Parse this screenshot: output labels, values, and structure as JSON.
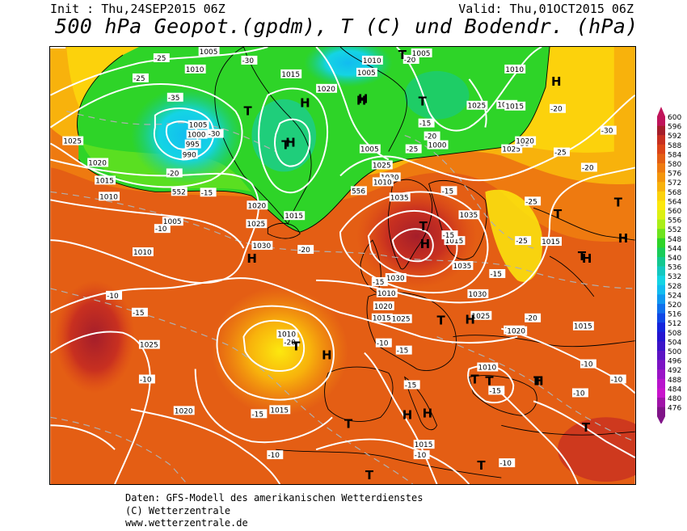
{
  "header": {
    "init": "Init : Thu,24SEP2015 06Z",
    "valid": "Valid: Thu,01OCT2015 06Z",
    "title": "500 hPa Geopot.(gpdm), T (C) und Bodendr. (hPa)"
  },
  "footer": {
    "line1": "Daten: GFS-Modell des amerikanischen Wetterdienstes",
    "line2": "(C) Wetterzentrale",
    "line3": "www.wetterzentrale.de"
  },
  "legend": {
    "labels": [
      "600",
      "596",
      "592",
      "588",
      "584",
      "580",
      "576",
      "572",
      "568",
      "564",
      "560",
      "556",
      "552",
      "548",
      "544",
      "540",
      "536",
      "532",
      "528",
      "524",
      "520",
      "516",
      "512",
      "508",
      "504",
      "500",
      "496",
      "492",
      "488",
      "484",
      "480",
      "476"
    ],
    "colors": [
      "#c0145a",
      "#a51e2a",
      "#c83020",
      "#dc4418",
      "#e45e14",
      "#ee7a10",
      "#f4960c",
      "#f8b20c",
      "#fcd20c",
      "#fce80e",
      "#dcf014",
      "#aaee18",
      "#6ee41e",
      "#2ed428",
      "#1acc5a",
      "#14c890",
      "#14c8c0",
      "#14d4e4",
      "#12bcf0",
      "#1098f0",
      "#1070ec",
      "#1048e6",
      "#1424dc",
      "#2414d0",
      "#3c14c8",
      "#5c14c4",
      "#7c14c4",
      "#9a14c6",
      "#b814cc",
      "#c814cc",
      "#a014a8",
      "#801488"
    ]
  },
  "pressure_labels": [
    "1005",
    "1010",
    "1015",
    "1020",
    "1025",
    "1030",
    "1035",
    "1000",
    "995",
    "990"
  ],
  "temp_labels": [
    "-10",
    "-15",
    "-20",
    "-25",
    "-30",
    "-35"
  ],
  "map_labels": [
    {
      "t": "1005"
    },
    {
      "t": "-25"
    },
    {
      "t": "1010"
    },
    {
      "t": "-30"
    },
    {
      "t": "1015"
    },
    {
      "t": "-25"
    },
    {
      "t": "1020"
    },
    {
      "t": "-35"
    },
    {
      "t": "1005"
    },
    {
      "t": "1000"
    },
    {
      "t": "995"
    },
    {
      "t": "990"
    },
    {
      "t": "-20"
    },
    {
      "t": "-30"
    },
    {
      "t": "1025"
    },
    {
      "t": "1020"
    },
    {
      "t": "1015"
    },
    {
      "t": "1010"
    },
    {
      "t": "552"
    },
    {
      "t": "-15"
    },
    {
      "t": "1005"
    },
    {
      "t": "-10"
    },
    {
      "t": "1010"
    },
    {
      "t": "1030"
    },
    {
      "t": "1025"
    },
    {
      "t": "1020"
    },
    {
      "t": "1015"
    },
    {
      "t": "-20"
    },
    {
      "t": "1025"
    },
    {
      "t": "1030"
    },
    {
      "t": "1035"
    },
    {
      "t": "1005"
    },
    {
      "t": "1010"
    },
    {
      "t": "-20"
    },
    {
      "t": "1005"
    },
    {
      "t": "1010"
    },
    {
      "t": "1020"
    },
    {
      "t": "1025"
    },
    {
      "t": "-15"
    },
    {
      "t": "-20"
    },
    {
      "t": "1000"
    },
    {
      "t": "-25"
    },
    {
      "t": "1005"
    },
    {
      "t": "556"
    },
    {
      "t": "1010"
    },
    {
      "t": "1015"
    },
    {
      "t": "1025"
    },
    {
      "t": "-30"
    },
    {
      "t": "-25"
    },
    {
      "t": "-30"
    },
    {
      "t": "-20"
    },
    {
      "t": "1020"
    },
    {
      "t": "-25"
    },
    {
      "t": "1015"
    },
    {
      "t": "-20"
    },
    {
      "t": "1035"
    },
    {
      "t": "-15"
    },
    {
      "t": "1015"
    },
    {
      "t": "-25"
    },
    {
      "t": "1035"
    },
    {
      "t": "-15"
    },
    {
      "t": "1030"
    },
    {
      "t": "1025"
    },
    {
      "t": "1020"
    },
    {
      "t": "-20"
    },
    {
      "t": "1015"
    },
    {
      "t": "-10"
    },
    {
      "t": "-15"
    },
    {
      "t": "1025"
    },
    {
      "t": "1030"
    },
    {
      "t": "-15"
    },
    {
      "t": "1020"
    },
    {
      "t": "-15"
    },
    {
      "t": "1010"
    },
    {
      "t": "1015"
    },
    {
      "t": "1010"
    },
    {
      "t": "-20"
    },
    {
      "t": "-10"
    },
    {
      "t": "-15"
    },
    {
      "t": "1025"
    },
    {
      "t": "-10"
    },
    {
      "t": "1020"
    },
    {
      "t": "-15"
    },
    {
      "t": "1015"
    },
    {
      "t": "-15"
    },
    {
      "t": "1010"
    },
    {
      "t": "-15"
    },
    {
      "t": "-10"
    },
    {
      "t": "1015"
    },
    {
      "t": "-10"
    },
    {
      "t": "-10"
    },
    {
      "t": "1020"
    },
    {
      "t": "-10"
    },
    {
      "t": "-10"
    },
    {
      "t": "-10"
    },
    {
      "t": "-15"
    }
  ],
  "systems": [
    "T",
    "H",
    "T",
    "H",
    "T",
    "H",
    "T",
    "H",
    "T",
    "H",
    "T",
    "H",
    "T",
    "H",
    "T",
    "H",
    "T",
    "T",
    "H",
    "T",
    "H",
    "H",
    "T",
    "T",
    "T",
    "H",
    "H",
    "T",
    "T",
    "H",
    "T"
  ]
}
